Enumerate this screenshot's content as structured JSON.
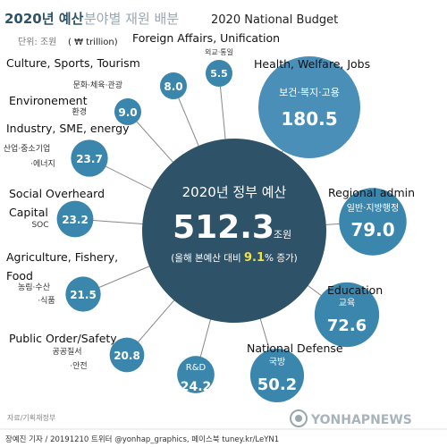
{
  "header": {
    "title_kr": "2020년 예산",
    "title_kr_sub": "분야별 재원 배분",
    "title_en": "2020 National Budget",
    "unit_kr": "단위: 조원",
    "unit_en": "( ₩ trillion)"
  },
  "center": {
    "title": "2020년 정부 예산",
    "value": "512.3",
    "unit": "조원",
    "note_prefix": "(올해 본예산 대비",
    "note_value": "9.1",
    "note_suffix": "% 증가)"
  },
  "chart_data": {
    "type": "bubble",
    "title": "2020 National Budget",
    "unit": "₩ trillion",
    "total": 512.3,
    "total_label": "2020년 정부 예산",
    "increase_percent": 9.1,
    "items": [
      {
        "en": "Foreign Affairs, Unification",
        "kr": [
          "외교·통일"
        ],
        "value": 5.5
      },
      {
        "en": "Health, Welfare, Jobs",
        "kr": [
          "보건·복지·고용"
        ],
        "value": 180.5
      },
      {
        "en": "Culture, Sports, Tourism",
        "kr": [
          "문화·체육·관광"
        ],
        "value": 8.0
      },
      {
        "en": "Environement",
        "kr": [
          "환경"
        ],
        "value": 9.0
      },
      {
        "en": "Industry, SME, energy",
        "kr": [
          "산업·중소기업",
          "·에너지"
        ],
        "value": 23.7
      },
      {
        "en": "Regional admin",
        "kr": [
          "일반·지방행정"
        ],
        "value": 79.0
      },
      {
        "en": "Social Overheard Capital",
        "kr": [
          "SOC"
        ],
        "value": 23.2
      },
      {
        "en": "Agriculture, Fishery, Food",
        "kr": [
          "농림·수산",
          "·식품"
        ],
        "value": 21.5
      },
      {
        "en": "Education",
        "kr": [
          "교육"
        ],
        "value": 72.6
      },
      {
        "en": "Public Order/Safety",
        "kr": [
          "공공질서",
          "·안전"
        ],
        "value": 20.8
      },
      {
        "en": "",
        "kr": [
          "R&D"
        ],
        "value": 24.2
      },
      {
        "en": "National Defense",
        "kr": [
          "국방"
        ],
        "value": 50.2
      }
    ]
  },
  "footer": {
    "source": "자료/기획재정부",
    "credit": "장예진 기자 / 20191210 트위터 @yonhap_graphics, 페이스북 tuney.kr/LeYN1",
    "watermark": "YONHAPNEWS"
  },
  "colors": {
    "dark": "#2e5368",
    "bubble": "#3b86ad",
    "big_bubble": "#4a8fb8",
    "spoke": "#888888",
    "text": "#222222",
    "gray_text": "#666666",
    "accent_yellow": "#f2e14a"
  }
}
